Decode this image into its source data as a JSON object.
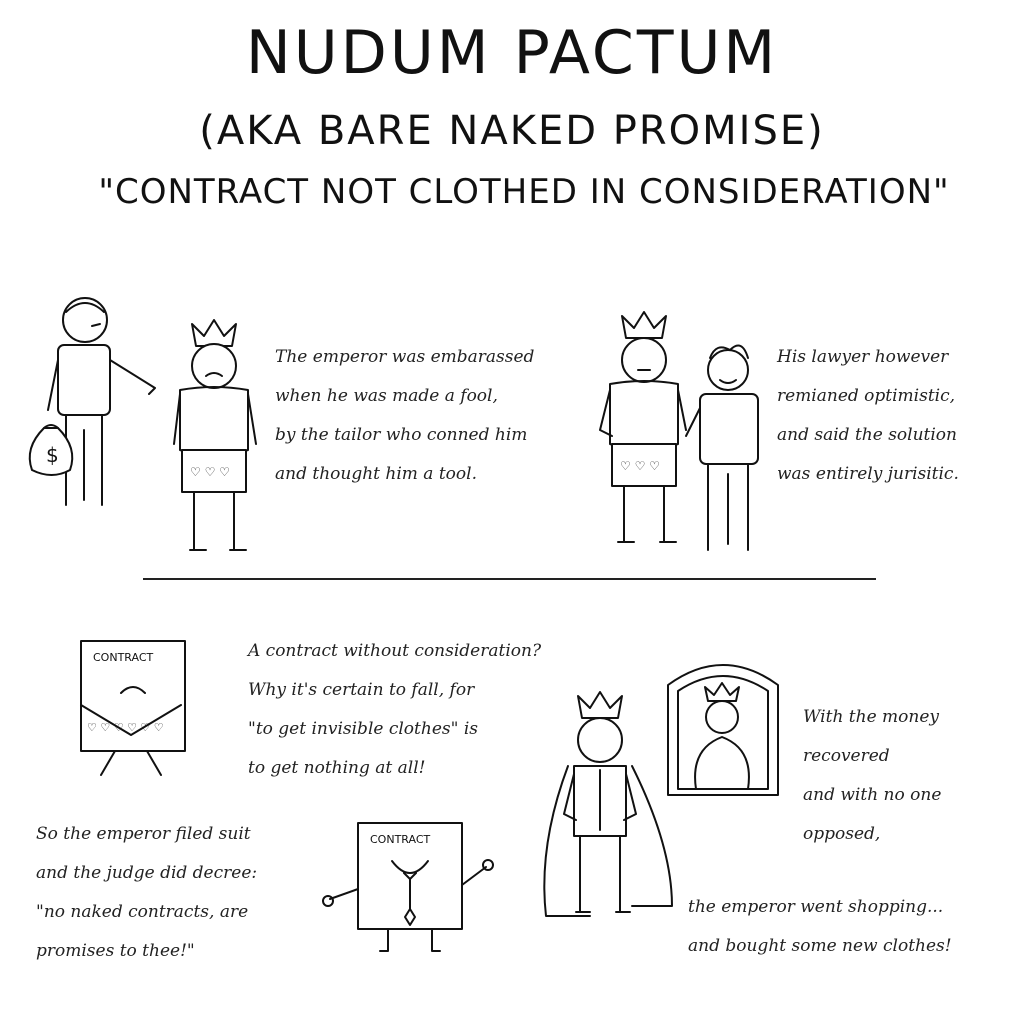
{
  "title": {
    "line1": "NUDUM PACTUM",
    "line2": "(AKA BARE NAKED PROMISE)",
    "line3": "\"CONTRACT NOT CLOTHED IN CONSIDERATION\""
  },
  "panel1": {
    "lines": [
      "The emperor was embarassed",
      "when he was made a fool,",
      "by the tailor who conned him",
      "and thought him a tool."
    ],
    "money_bag_symbol": "$"
  },
  "panel2": {
    "lines": [
      "His lawyer however",
      "remianed optimistic,",
      "and said the solution",
      "was entirely jurisitic."
    ]
  },
  "panel3": {
    "contract_label": "CONTRACT",
    "lines": [
      "A contract without consideration?",
      "Why it's certain to fall, for",
      "\"to get invisible clothes\" is",
      "to get nothing at all!"
    ]
  },
  "panel4": {
    "contract_label": "CONTRACT",
    "lines": [
      "So the emperor filed suit",
      "and the judge did decree:",
      "\"no naked contracts, are",
      "promises to thee!\""
    ]
  },
  "panel5": {
    "lines_top": [
      "With the money",
      "recovered",
      "and with no one",
      "opposed,"
    ],
    "lines_bottom": [
      "the emperor went shopping...",
      "and bought some new clothes!"
    ]
  },
  "colors": {
    "ink": "#111111",
    "paper": "#ffffff"
  },
  "icons": [
    "money-bag-icon",
    "crown-icon",
    "heart-icon"
  ]
}
